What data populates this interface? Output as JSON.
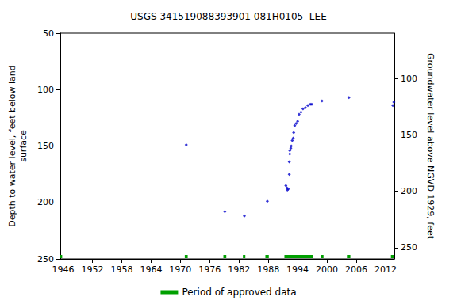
{
  "chart_data": {
    "type": "scatter",
    "title": "USGS 341519088393901 081H0105  LEE",
    "y_label": "Depth to water level, feet below land\nsurface",
    "y2_label": "Groundwater level above NGVD 1929, feet",
    "xlim": [
      1945.4,
      2013.8
    ],
    "xticks": [
      1946,
      1952,
      1958,
      1964,
      1970,
      1976,
      1982,
      1988,
      1994,
      2000,
      2006,
      2012
    ],
    "ylim": [
      250,
      50
    ],
    "yticks": [
      50,
      100,
      150,
      200,
      250
    ],
    "y2lim": [
      60,
      260
    ],
    "y2ticks": [
      100,
      150,
      200,
      250
    ],
    "grid": false,
    "legend": "bottom",
    "series": [
      {
        "type": "scatter",
        "color": "#0000cc",
        "marker": "diamond",
        "x": [
          1971.2,
          1979.1,
          1983.1,
          1987.8,
          1991.6,
          1991.8,
          1991.9,
          1992.1,
          1992.3,
          1992.3,
          1992.4,
          1992.4,
          1992.6,
          1992.7,
          1992.9,
          1993.1,
          1993.2,
          1993.4,
          1993.7,
          1994.0,
          1994.3,
          1994.7,
          1995.1,
          1995.6,
          1996.1,
          1996.6,
          1996.9,
          1999.0,
          2004.5,
          2013.5,
          2013.7
        ],
        "values": [
          149,
          208,
          212,
          199,
          185,
          187,
          189,
          188,
          175,
          164,
          157,
          154,
          152,
          150,
          145,
          143,
          138,
          132,
          130,
          128,
          122,
          120,
          117,
          116,
          114,
          113,
          113,
          110,
          107,
          114,
          111
        ]
      },
      {
        "type": "period",
        "name": "Period of approved data",
        "color": "#00a000",
        "periods": [
          [
            1945.4,
            1945.8
          ],
          [
            1970.9,
            1971.5
          ],
          [
            1978.8,
            1979.4
          ],
          [
            1982.8,
            1983.3
          ],
          [
            1987.4,
            1988.1
          ],
          [
            1991.3,
            1997.1
          ],
          [
            1998.7,
            1999.3
          ],
          [
            2004.1,
            2004.8
          ],
          [
            2013.1,
            2013.8
          ]
        ]
      }
    ]
  }
}
